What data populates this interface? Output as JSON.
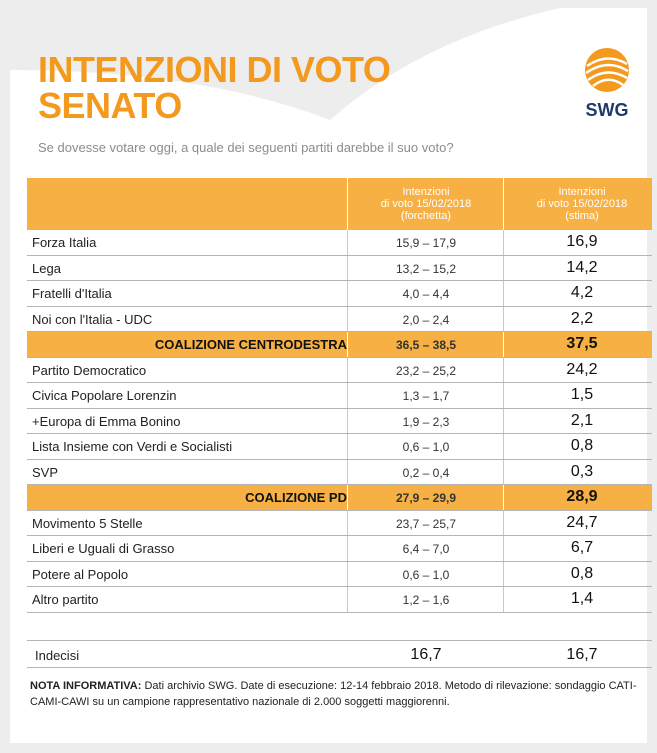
{
  "title": {
    "line1": "INTENZIONI DI VOTO",
    "line2": "SENATO"
  },
  "logo": {
    "text": "SWG"
  },
  "question": "Se dovesse votare oggi, a quale dei seguenti partiti darebbe il suo voto?",
  "chart_data": {
    "type": "table",
    "columns": [
      {
        "lines": [
          "Intenzioni",
          "di voto 15/02/2018",
          "(forchetta)"
        ]
      },
      {
        "lines": [
          "Intenzioni",
          "di voto 15/02/2018",
          "(stima)"
        ]
      }
    ],
    "rows": [
      {
        "name": "Forza Italia",
        "range": "15,9 – 17,9",
        "estimate": "16,9",
        "coalition": false
      },
      {
        "name": "Lega",
        "range": "13,2 – 15,2",
        "estimate": "14,2",
        "coalition": false
      },
      {
        "name": "Fratelli d'Italia",
        "range": "4,0 – 4,4",
        "estimate": "4,2",
        "coalition": false
      },
      {
        "name": "Noi con l'Italia - UDC",
        "range": "2,0 – 2,4",
        "estimate": "2,2",
        "coalition": false
      },
      {
        "name": "COALIZIONE CENTRODESTRA",
        "range": "36,5 – 38,5",
        "estimate": "37,5",
        "coalition": true
      },
      {
        "name": "Partito Democratico",
        "range": "23,2 – 25,2",
        "estimate": "24,2",
        "coalition": false
      },
      {
        "name": "Civica Popolare Lorenzin",
        "range": "1,3 – 1,7",
        "estimate": "1,5",
        "coalition": false
      },
      {
        "name": "+Europa di Emma Bonino",
        "range": "1,9 – 2,3",
        "estimate": "2,1",
        "coalition": false
      },
      {
        "name": "Lista Insieme con Verdi e Socialisti",
        "range": "0,6 – 1,0",
        "estimate": "0,8",
        "coalition": false
      },
      {
        "name": "SVP",
        "range": "0,2 – 0,4",
        "estimate": "0,3",
        "coalition": false
      },
      {
        "name": "COALIZIONE PD",
        "range": "27,9 – 29,9",
        "estimate": "28,9",
        "coalition": true
      },
      {
        "name": "Movimento 5 Stelle",
        "range": "23,7 – 25,7",
        "estimate": "24,7",
        "coalition": false
      },
      {
        "name": "Liberi e Uguali di Grasso",
        "range": "6,4 – 7,0",
        "estimate": "6,7",
        "coalition": false
      },
      {
        "name": "Potere al Popolo",
        "range": "0,6 – 1,0",
        "estimate": "0,8",
        "coalition": false
      },
      {
        "name": "Altro partito",
        "range": "1,2 – 1,6",
        "estimate": "1,4",
        "coalition": false
      }
    ],
    "undecided": {
      "name": "Indecisi",
      "range": "16,7",
      "estimate": "16,7"
    }
  },
  "note": {
    "label": "NOTA INFORMATIVA:",
    "text": "Dati archivio SWG. Date di esecuzione: 12-14 febbraio 2018. Metodo di rilevazione: sondaggio CATI-CAMI-CAWI su un campione rappresentativo nazionale di 2.000 soggetti maggiorenni."
  },
  "colors": {
    "accent": "#f39a1e",
    "header": "#f7b044",
    "logo_blue": "#1f3a6b"
  }
}
